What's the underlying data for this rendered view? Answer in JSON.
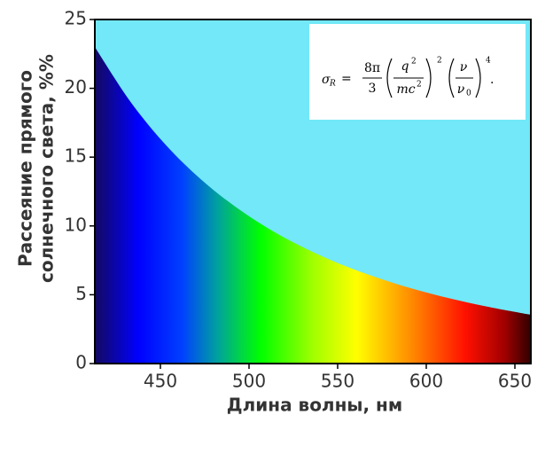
{
  "chart_data": {
    "type": "area",
    "xlabel": "Длина волны, нм",
    "ylabel": [
      "Рассеяние прямого",
      "солнечного света, %%"
    ],
    "x": [
      413,
      433,
      453,
      473,
      493,
      513,
      533,
      553,
      573,
      593,
      613,
      633,
      653,
      659
    ],
    "values": [
      23,
      19.04,
      15.89,
      13.37,
      11.33,
      9.66,
      8.29,
      7.15,
      6.21,
      5.41,
      4.74,
      4.17,
      3.68,
      3.55
    ],
    "background_color": "#72e8f8",
    "xlim": [
      413,
      659
    ],
    "xticks": [
      450,
      500,
      550,
      600,
      650
    ],
    "ylim": [
      0,
      25
    ],
    "yticks": [
      0,
      5,
      10,
      15,
      20,
      25
    ],
    "annotation": {
      "sigma": "σ",
      "sub": "R",
      "eq": "=",
      "f1num": "8π",
      "f1den": "3",
      "f2num": "q",
      "f2numsup": "2",
      "f2den": "mc",
      "f2densup": "2",
      "pow2": "2",
      "f3num": "ν",
      "f3den": "ν",
      "f3densub": "0",
      "pow4": "4",
      "end": "."
    }
  }
}
